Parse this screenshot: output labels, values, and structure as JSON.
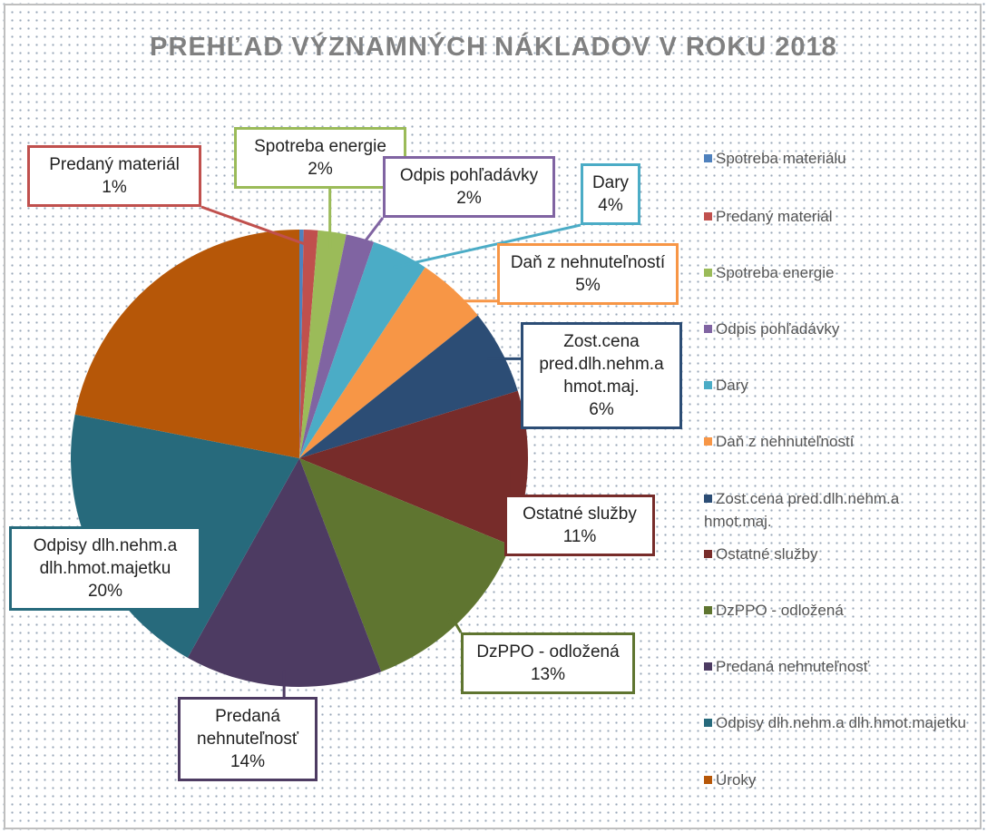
{
  "chart_data": {
    "type": "pie",
    "title": "PREHĽAD VÝZNAMNÝCH NÁKLADOV V ROKU 2018",
    "categories": [
      "Spotreba materiálu",
      "Predaný materiál",
      "Spotreba energie",
      "Odpis pohľadávky",
      "Dary",
      "Daň z nehnuteľností",
      "Zost.cena pred.dlh.nehm.a hmot.maj.",
      "Ostatné služby",
      "DzPPO - odložená",
      "Predaná nehnuteľnosť",
      "Odpisy dlh.nehm.a dlh.hmot.majetku",
      "Úroky"
    ],
    "values": [
      0.3,
      1,
      2,
      2,
      4,
      5,
      6,
      11,
      13,
      14,
      20,
      22
    ],
    "value_labels": [
      null,
      "1%",
      "2%",
      "2%",
      "4%",
      "5%",
      "6%",
      "11%",
      "13%",
      "14%",
      "20%",
      null
    ],
    "colors": [
      "#4f81bd",
      "#c0504d",
      "#9bbb59",
      "#8064a2",
      "#4bacc6",
      "#f79646",
      "#2c4d75",
      "#772c2a",
      "#5f7530",
      "#4d3b62",
      "#276a7c",
      "#b65708"
    ],
    "legend": "right"
  }
}
